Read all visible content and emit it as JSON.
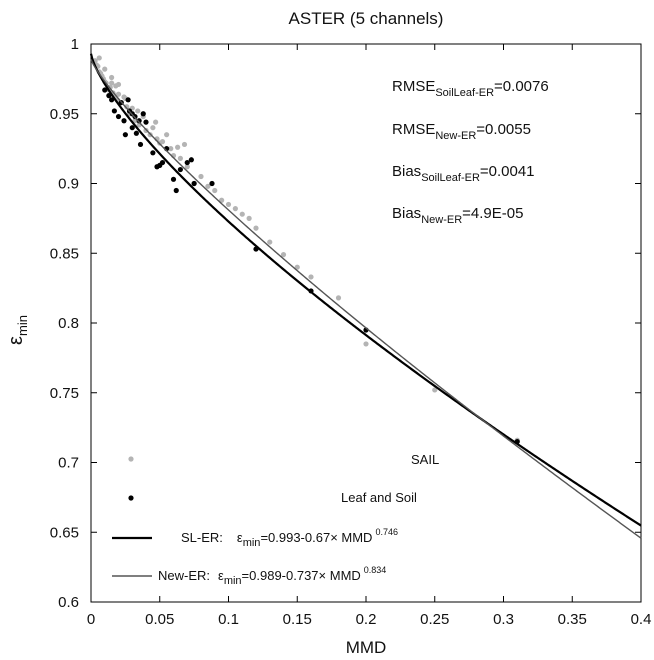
{
  "chart_data": {
    "type": "scatter",
    "title": "ASTER (5 channels)",
    "xlabel": "MMD",
    "ylabel": "ε",
    "ylabel_sub": "min",
    "xlim": [
      0,
      0.4
    ],
    "ylim": [
      0.6,
      1.0
    ],
    "xticks": [
      0,
      0.05,
      0.1,
      0.15,
      0.2,
      0.25,
      0.3,
      0.35,
      0.4
    ],
    "xtick_labels": [
      "0",
      "0.05",
      "0.1",
      "0.15",
      "0.2",
      "0.25",
      "0.3",
      "0.35",
      "0.4"
    ],
    "yticks": [
      0.6,
      0.65,
      0.7,
      0.75,
      0.8,
      0.85,
      0.9,
      0.95,
      1.0
    ],
    "ytick_labels": [
      "0.6",
      "0.65",
      "0.7",
      "0.75",
      "0.8",
      "0.85",
      "0.9",
      "0.95",
      "1"
    ],
    "grid": false,
    "series": [
      {
        "name": "SAIL",
        "color": "#b4b4b4",
        "x": [
          0.003,
          0.004,
          0.005,
          0.006,
          0.007,
          0.008,
          0.009,
          0.01,
          0.011,
          0.012,
          0.013,
          0.014,
          0.015,
          0.016,
          0.017,
          0.018,
          0.019,
          0.02,
          0.022,
          0.024,
          0.026,
          0.028,
          0.03,
          0.032,
          0.035,
          0.038,
          0.04,
          0.043,
          0.045,
          0.048,
          0.05,
          0.052,
          0.055,
          0.058,
          0.06,
          0.063,
          0.065,
          0.07,
          0.075,
          0.08,
          0.085,
          0.09,
          0.095,
          0.1,
          0.105,
          0.11,
          0.115,
          0.12,
          0.13,
          0.14,
          0.15,
          0.16,
          0.18,
          0.2,
          0.25,
          0.31,
          0.006,
          0.01,
          0.015,
          0.02,
          0.025,
          0.034,
          0.047,
          0.068
        ],
        "y": [
          0.988,
          0.985,
          0.984,
          0.98,
          0.979,
          0.977,
          0.975,
          0.973,
          0.972,
          0.968,
          0.967,
          0.969,
          0.972,
          0.965,
          0.963,
          0.97,
          0.96,
          0.964,
          0.958,
          0.962,
          0.955,
          0.95,
          0.954,
          0.945,
          0.942,
          0.948,
          0.938,
          0.935,
          0.94,
          0.932,
          0.929,
          0.93,
          0.935,
          0.925,
          0.92,
          0.926,
          0.918,
          0.912,
          0.9,
          0.905,
          0.898,
          0.895,
          0.888,
          0.885,
          0.882,
          0.878,
          0.875,
          0.868,
          0.858,
          0.849,
          0.84,
          0.833,
          0.818,
          0.785,
          0.752,
          0.716,
          0.99,
          0.982,
          0.976,
          0.971,
          0.961,
          0.952,
          0.944,
          0.928
        ]
      },
      {
        "name": "Leaf and Soil",
        "color": "#000000",
        "x": [
          0.01,
          0.013,
          0.015,
          0.017,
          0.02,
          0.022,
          0.024,
          0.025,
          0.027,
          0.028,
          0.03,
          0.03,
          0.032,
          0.033,
          0.035,
          0.036,
          0.038,
          0.04,
          0.045,
          0.048,
          0.05,
          0.052,
          0.055,
          0.06,
          0.062,
          0.065,
          0.07,
          0.073,
          0.075,
          0.088,
          0.12,
          0.16,
          0.2,
          0.31
        ],
        "y": [
          0.967,
          0.963,
          0.96,
          0.952,
          0.948,
          0.958,
          0.945,
          0.935,
          0.96,
          0.952,
          0.94,
          0.95,
          0.948,
          0.936,
          0.945,
          0.928,
          0.95,
          0.944,
          0.922,
          0.912,
          0.913,
          0.915,
          0.925,
          0.903,
          0.895,
          0.91,
          0.915,
          0.917,
          0.9,
          0.9,
          0.853,
          0.823,
          0.795,
          0.715
        ]
      }
    ],
    "fits": [
      {
        "name": "SL-ER",
        "a": 0.993,
        "b": 0.67,
        "c": 0.746,
        "color": "#000000",
        "width": 2.2
      },
      {
        "name": "New-ER",
        "a": 0.989,
        "b": 0.737,
        "c": 0.834,
        "color": "#555555",
        "width": 1.4
      }
    ],
    "stats": [
      {
        "label": "RMSE",
        "sub": "SoilLeaf-ER",
        "value": "=0.0076"
      },
      {
        "label": "RMSE",
        "sub": "New-ER",
        "value": "=0.0055"
      },
      {
        "label": "Bias",
        "sub": "SoilLeaf-ER",
        "value": "=0.0041"
      },
      {
        "label": "Bias",
        "sub": "New-ER",
        "value": "=4.9E-05"
      }
    ],
    "legend": {
      "placement": "bottom-left",
      "sail": "SAIL",
      "leafsoil": "Leaf and Soil",
      "sl_prefix": "SL-ER:",
      "sl_eps": "ε",
      "sl_min": "min",
      "sl_formula": "=0.993-0.67×  MMD",
      "sl_exp": "0.746",
      "ne_prefix": "New-ER:",
      "ne_eps": "ε",
      "ne_min": "min",
      "ne_formula": "=0.989-0.737×  MMD",
      "ne_exp": "0.834"
    }
  }
}
